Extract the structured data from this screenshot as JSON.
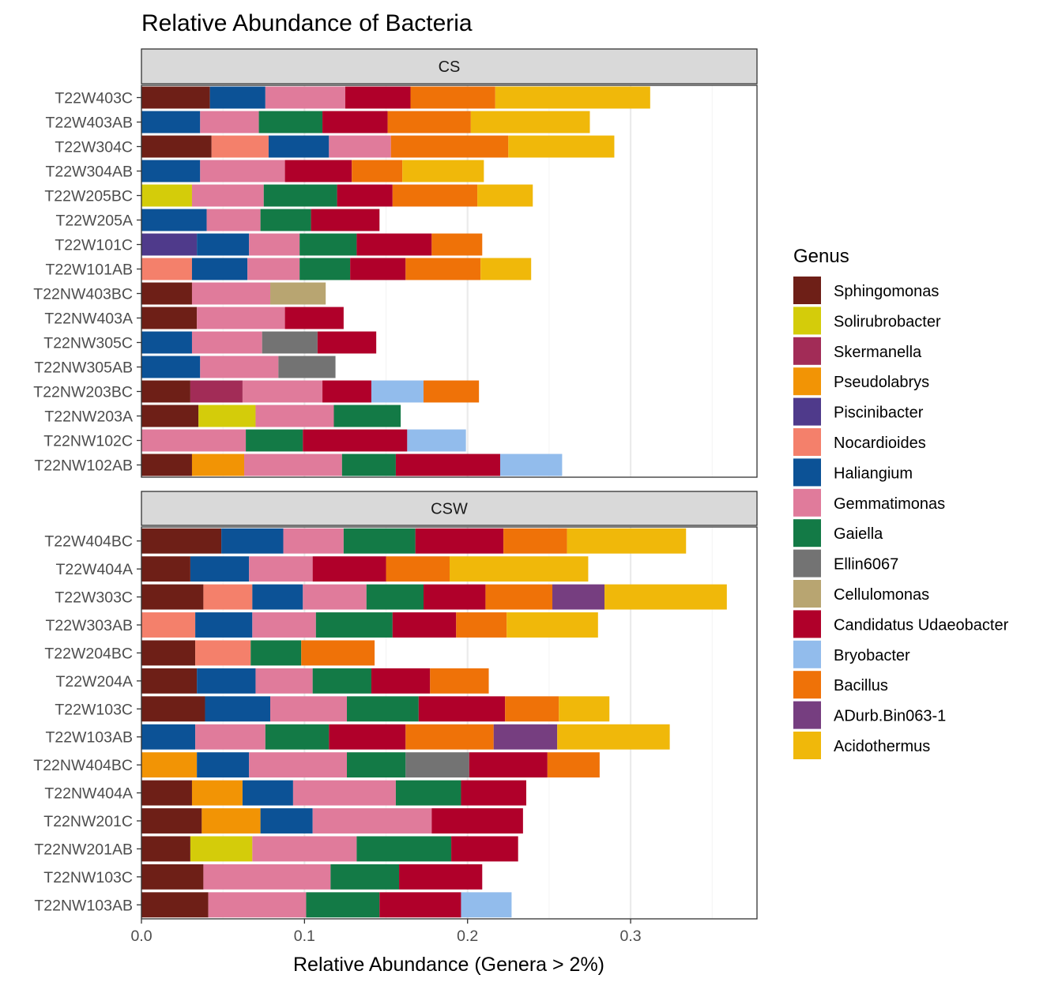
{
  "chart_data": {
    "type": "bar",
    "orientation": "horizontal",
    "stacked": true,
    "title": "Relative Abundance of Bacteria",
    "xlabel": "Relative Abundance (Genera > 2%)",
    "ylabel": "",
    "xlim": [
      0,
      0.3775
    ],
    "x_ticks": [
      0.0,
      0.1,
      0.2,
      0.3
    ],
    "x_tick_labels": [
      "0.0",
      "0.1",
      "0.2",
      "0.3"
    ],
    "grid": true,
    "legend": {
      "title": "Genus",
      "position": "right",
      "entries": [
        {
          "name": "Sphingomonas",
          "color": "#6e1f17"
        },
        {
          "name": "Solirubrobacter",
          "color": "#d4cc0a"
        },
        {
          "name": "Skermanella",
          "color": "#a22c57"
        },
        {
          "name": "Pseudolabrys",
          "color": "#f29405"
        },
        {
          "name": "Piscinibacter",
          "color": "#4f3a8b"
        },
        {
          "name": "Nocardioides",
          "color": "#f4806b"
        },
        {
          "name": "Haliangium",
          "color": "#0c5296"
        },
        {
          "name": "Gemmatimonas",
          "color": "#e07b9b"
        },
        {
          "name": "Gaiella",
          "color": "#137a46"
        },
        {
          "name": "Ellin6067",
          "color": "#737373"
        },
        {
          "name": "Cellulomonas",
          "color": "#b8a571"
        },
        {
          "name": "Candidatus Udaeobacter",
          "color": "#b0002a"
        },
        {
          "name": "Bryobacter",
          "color": "#92bcec"
        },
        {
          "name": "Bacillus",
          "color": "#ef7208"
        },
        {
          "name": "ADurb.Bin063-1",
          "color": "#763e80"
        },
        {
          "name": "Acidothermus",
          "color": "#f0b80a"
        }
      ]
    },
    "panels": [
      {
        "label": "CS",
        "samples": [
          {
            "name": "T22W403C",
            "segments": [
              [
                "Sphingomonas",
                0.042
              ],
              [
                "Haliangium",
                0.034
              ],
              [
                "Gemmatimonas",
                0.049
              ],
              [
                "Candidatus Udaeobacter",
                0.04
              ],
              [
                "Bacillus",
                0.052
              ],
              [
                "Acidothermus",
                0.095
              ]
            ]
          },
          {
            "name": "T22W403AB",
            "segments": [
              [
                "Haliangium",
                0.036
              ],
              [
                "Gemmatimonas",
                0.036
              ],
              [
                "Gaiella",
                0.039
              ],
              [
                "Candidatus Udaeobacter",
                0.04
              ],
              [
                "Bacillus",
                0.051
              ],
              [
                "Acidothermus",
                0.073
              ]
            ]
          },
          {
            "name": "T22W304C",
            "segments": [
              [
                "Sphingomonas",
                0.043
              ],
              [
                "Nocardioides",
                0.035
              ],
              [
                "Haliangium",
                0.037
              ],
              [
                "Gemmatimonas",
                0.038
              ],
              [
                "Bacillus",
                0.072
              ],
              [
                "Acidothermus",
                0.065
              ]
            ]
          },
          {
            "name": "T22W304AB",
            "segments": [
              [
                "Haliangium",
                0.036
              ],
              [
                "Gemmatimonas",
                0.052
              ],
              [
                "Candidatus Udaeobacter",
                0.041
              ],
              [
                "Bacillus",
                0.031
              ],
              [
                "Acidothermus",
                0.05
              ]
            ]
          },
          {
            "name": "T22W205BC",
            "segments": [
              [
                "Solirubrobacter",
                0.031
              ],
              [
                "Gemmatimonas",
                0.044
              ],
              [
                "Gaiella",
                0.045
              ],
              [
                "Candidatus Udaeobacter",
                0.034
              ],
              [
                "Bacillus",
                0.052
              ],
              [
                "Acidothermus",
                0.034
              ]
            ]
          },
          {
            "name": "T22W205A",
            "segments": [
              [
                "Haliangium",
                0.04
              ],
              [
                "Gemmatimonas",
                0.033
              ],
              [
                "Gaiella",
                0.031
              ],
              [
                "Candidatus Udaeobacter",
                0.042
              ]
            ]
          },
          {
            "name": "T22W101C",
            "segments": [
              [
                "Piscinibacter",
                0.034
              ],
              [
                "Haliangium",
                0.032
              ],
              [
                "Gemmatimonas",
                0.031
              ],
              [
                "Gaiella",
                0.035
              ],
              [
                "Candidatus Udaeobacter",
                0.046
              ],
              [
                "Bacillus",
                0.031
              ]
            ]
          },
          {
            "name": "T22W101AB",
            "segments": [
              [
                "Nocardioides",
                0.031
              ],
              [
                "Haliangium",
                0.034
              ],
              [
                "Gemmatimonas",
                0.032
              ],
              [
                "Gaiella",
                0.031
              ],
              [
                "Candidatus Udaeobacter",
                0.034
              ],
              [
                "Bacillus",
                0.046
              ],
              [
                "Acidothermus",
                0.031
              ]
            ]
          },
          {
            "name": "T22NW403BC",
            "segments": [
              [
                "Sphingomonas",
                0.031
              ],
              [
                "Gemmatimonas",
                0.048
              ],
              [
                "Cellulomonas",
                0.034
              ]
            ]
          },
          {
            "name": "T22NW403A",
            "segments": [
              [
                "Sphingomonas",
                0.034
              ],
              [
                "Gemmatimonas",
                0.054
              ],
              [
                "Candidatus Udaeobacter",
                0.036
              ]
            ]
          },
          {
            "name": "T22NW305C",
            "segments": [
              [
                "Haliangium",
                0.031
              ],
              [
                "Gemmatimonas",
                0.043
              ],
              [
                "Ellin6067",
                0.034
              ],
              [
                "Candidatus Udaeobacter",
                0.036
              ]
            ]
          },
          {
            "name": "T22NW305AB",
            "segments": [
              [
                "Haliangium",
                0.036
              ],
              [
                "Gemmatimonas",
                0.048
              ],
              [
                "Ellin6067",
                0.035
              ]
            ]
          },
          {
            "name": "T22NW203BC",
            "segments": [
              [
                "Sphingomonas",
                0.03
              ],
              [
                "Skermanella",
                0.032
              ],
              [
                "Gemmatimonas",
                0.049
              ],
              [
                "Candidatus Udaeobacter",
                0.03
              ],
              [
                "Bryobacter",
                0.032
              ],
              [
                "Bacillus",
                0.034
              ]
            ]
          },
          {
            "name": "T22NW203A",
            "segments": [
              [
                "Sphingomonas",
                0.035
              ],
              [
                "Solirubrobacter",
                0.035
              ],
              [
                "Gemmatimonas",
                0.048
              ],
              [
                "Gaiella",
                0.041
              ]
            ]
          },
          {
            "name": "T22NW102C",
            "segments": [
              [
                "Gemmatimonas",
                0.064
              ],
              [
                "Gaiella",
                0.035
              ],
              [
                "Candidatus Udaeobacter",
                0.064
              ],
              [
                "Bryobacter",
                0.036
              ]
            ]
          },
          {
            "name": "T22NW102AB",
            "segments": [
              [
                "Sphingomonas",
                0.031
              ],
              [
                "Pseudolabrys",
                0.032
              ],
              [
                "Gemmatimonas",
                0.06
              ],
              [
                "Gaiella",
                0.033
              ],
              [
                "Candidatus Udaeobacter",
                0.064
              ],
              [
                "Bryobacter",
                0.038
              ]
            ]
          }
        ]
      },
      {
        "label": "CSW",
        "samples": [
          {
            "name": "T22W404BC",
            "segments": [
              [
                "Sphingomonas",
                0.049
              ],
              [
                "Haliangium",
                0.038
              ],
              [
                "Gemmatimonas",
                0.037
              ],
              [
                "Gaiella",
                0.044
              ],
              [
                "Candidatus Udaeobacter",
                0.054
              ],
              [
                "Bacillus",
                0.039
              ],
              [
                "Acidothermus",
                0.073
              ]
            ]
          },
          {
            "name": "T22W404A",
            "segments": [
              [
                "Sphingomonas",
                0.03
              ],
              [
                "Haliangium",
                0.036
              ],
              [
                "Gemmatimonas",
                0.039
              ],
              [
                "Candidatus Udaeobacter",
                0.045
              ],
              [
                "Bacillus",
                0.039
              ],
              [
                "Acidothermus",
                0.085
              ]
            ]
          },
          {
            "name": "T22W303C",
            "segments": [
              [
                "Sphingomonas",
                0.038
              ],
              [
                "Nocardioides",
                0.03
              ],
              [
                "Haliangium",
                0.031
              ],
              [
                "Gemmatimonas",
                0.039
              ],
              [
                "Gaiella",
                0.035
              ],
              [
                "Candidatus Udaeobacter",
                0.038
              ],
              [
                "Bacillus",
                0.041
              ],
              [
                "ADurb.Bin063-1",
                0.032
              ],
              [
                "Acidothermus",
                0.075
              ]
            ]
          },
          {
            "name": "T22W303AB",
            "segments": [
              [
                "Nocardioides",
                0.033
              ],
              [
                "Haliangium",
                0.035
              ],
              [
                "Gemmatimonas",
                0.039
              ],
              [
                "Gaiella",
                0.047
              ],
              [
                "Candidatus Udaeobacter",
                0.039
              ],
              [
                "Bacillus",
                0.031
              ],
              [
                "Acidothermus",
                0.056
              ]
            ]
          },
          {
            "name": "T22W204BC",
            "segments": [
              [
                "Sphingomonas",
                0.033
              ],
              [
                "Nocardioides",
                0.034
              ],
              [
                "Gaiella",
                0.031
              ],
              [
                "Bacillus",
                0.045
              ]
            ]
          },
          {
            "name": "T22W204A",
            "segments": [
              [
                "Sphingomonas",
                0.034
              ],
              [
                "Haliangium",
                0.036
              ],
              [
                "Gemmatimonas",
                0.035
              ],
              [
                "Gaiella",
                0.036
              ],
              [
                "Candidatus Udaeobacter",
                0.036
              ],
              [
                "Bacillus",
                0.036
              ]
            ]
          },
          {
            "name": "T22W103C",
            "segments": [
              [
                "Sphingomonas",
                0.039
              ],
              [
                "Haliangium",
                0.04
              ],
              [
                "Gemmatimonas",
                0.047
              ],
              [
                "Gaiella",
                0.044
              ],
              [
                "Candidatus Udaeobacter",
                0.053
              ],
              [
                "Bacillus",
                0.033
              ],
              [
                "Acidothermus",
                0.031
              ]
            ]
          },
          {
            "name": "T22W103AB",
            "segments": [
              [
                "Haliangium",
                0.033
              ],
              [
                "Gemmatimonas",
                0.043
              ],
              [
                "Gaiella",
                0.039
              ],
              [
                "Candidatus Udaeobacter",
                0.047
              ],
              [
                "Bacillus",
                0.054
              ],
              [
                "ADurb.Bin063-1",
                0.039
              ],
              [
                "Acidothermus",
                0.069
              ]
            ]
          },
          {
            "name": "T22NW404BC",
            "segments": [
              [
                "Pseudolabrys",
                0.034
              ],
              [
                "Haliangium",
                0.032
              ],
              [
                "Gemmatimonas",
                0.06
              ],
              [
                "Gaiella",
                0.036
              ],
              [
                "Ellin6067",
                0.039
              ],
              [
                "Candidatus Udaeobacter",
                0.048
              ],
              [
                "Bacillus",
                0.032
              ]
            ]
          },
          {
            "name": "T22NW404A",
            "segments": [
              [
                "Sphingomonas",
                0.031
              ],
              [
                "Pseudolabrys",
                0.031
              ],
              [
                "Haliangium",
                0.031
              ],
              [
                "Gemmatimonas",
                0.063
              ],
              [
                "Gaiella",
                0.04
              ],
              [
                "Candidatus Udaeobacter",
                0.04
              ]
            ]
          },
          {
            "name": "T22NW201C",
            "segments": [
              [
                "Sphingomonas",
                0.037
              ],
              [
                "Pseudolabrys",
                0.036
              ],
              [
                "Haliangium",
                0.032
              ],
              [
                "Gemmatimonas",
                0.073
              ],
              [
                "Candidatus Udaeobacter",
                0.056
              ]
            ]
          },
          {
            "name": "T22NW201AB",
            "segments": [
              [
                "Sphingomonas",
                0.03
              ],
              [
                "Solirubrobacter",
                0.038
              ],
              [
                "Gemmatimonas",
                0.064
              ],
              [
                "Gaiella",
                0.058
              ],
              [
                "Candidatus Udaeobacter",
                0.041
              ]
            ]
          },
          {
            "name": "T22NW103C",
            "segments": [
              [
                "Sphingomonas",
                0.038
              ],
              [
                "Gemmatimonas",
                0.078
              ],
              [
                "Gaiella",
                0.042
              ],
              [
                "Candidatus Udaeobacter",
                0.051
              ]
            ]
          },
          {
            "name": "T22NW103AB",
            "segments": [
              [
                "Sphingomonas",
                0.041
              ],
              [
                "Gemmatimonas",
                0.06
              ],
              [
                "Gaiella",
                0.045
              ],
              [
                "Candidatus Udaeobacter",
                0.05
              ],
              [
                "Bryobacter",
                0.031
              ]
            ]
          }
        ]
      }
    ]
  }
}
